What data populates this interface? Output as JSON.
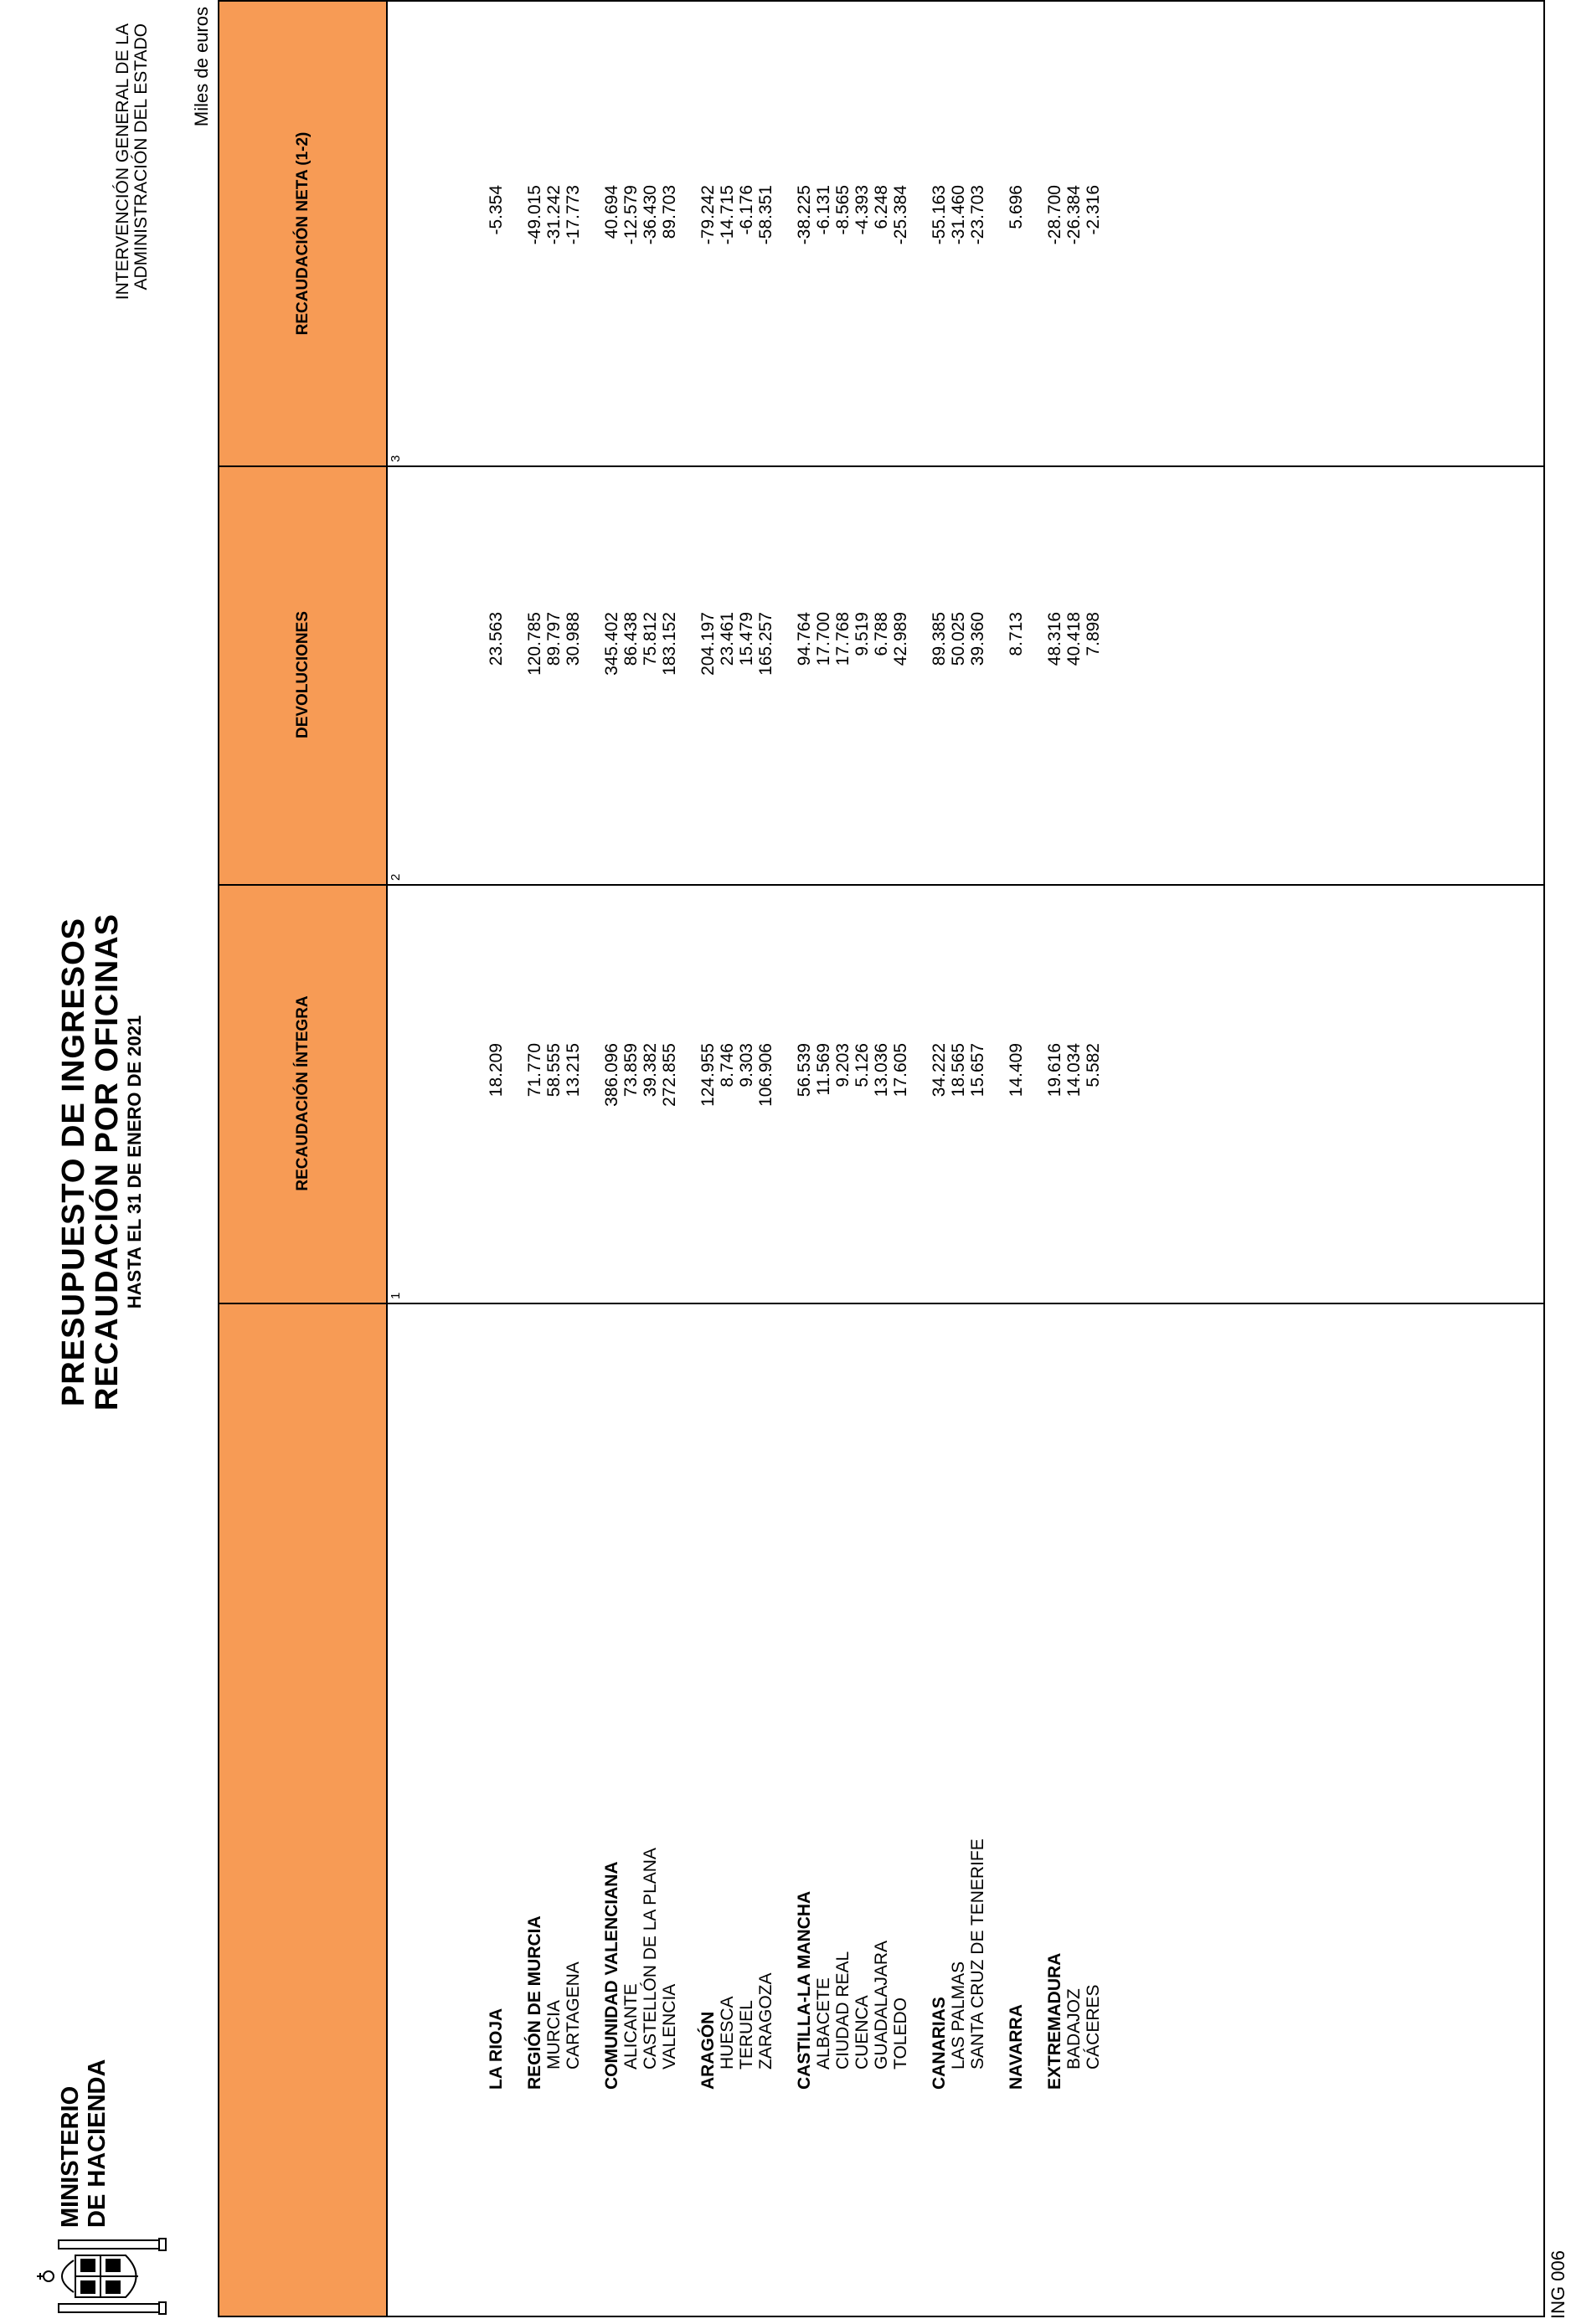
{
  "header": {
    "ministry_line1": "MINISTERIO",
    "ministry_line2": "DE HACIENDA",
    "title_line1": "PRESUPUESTO DE INGRESOS",
    "title_line2": "RECAUDACIÓN POR OFICINAS",
    "title_line3": "HASTA EL 31 DE ENERO DE 2021",
    "ige_line1": "INTERVENCIÓN GENERAL DE LA",
    "ige_line2": "ADMINISTRACIÓN DEL ESTADO",
    "units": "Miles de euros"
  },
  "footer": {
    "code": "ING 006"
  },
  "columns": [
    {
      "label": "RECAUDACIÓN ÍNTEGRA",
      "number": "1"
    },
    {
      "label": "DEVOLUCIONES",
      "number": "2"
    },
    {
      "label": "RECAUDACIÓN NETA (1-2)",
      "number": "3"
    }
  ],
  "rows": [
    {
      "name": "LA RIOJA",
      "type": "group",
      "integra": "18.209",
      "devoluciones": "23.563",
      "neta": "-5.354"
    },
    {
      "name": "REGIÓN DE MURCIA",
      "type": "group",
      "integra": "71.770",
      "devoluciones": "120.785",
      "neta": "-49.015"
    },
    {
      "name": "MURCIA",
      "type": "sub",
      "integra": "58.555",
      "devoluciones": "89.797",
      "neta": "-31.242"
    },
    {
      "name": "CARTAGENA",
      "type": "sub",
      "integra": "13.215",
      "devoluciones": "30.988",
      "neta": "-17.773"
    },
    {
      "name": "COMUNIDAD VALENCIANA",
      "type": "group",
      "integra": "386.096",
      "devoluciones": "345.402",
      "neta": "40.694"
    },
    {
      "name": "ALICANTE",
      "type": "sub",
      "integra": "73.859",
      "devoluciones": "86.438",
      "neta": "-12.579"
    },
    {
      "name": "CASTELLÓN DE LA PLANA",
      "type": "sub",
      "integra": "39.382",
      "devoluciones": "75.812",
      "neta": "-36.430"
    },
    {
      "name": "VALENCIA",
      "type": "sub",
      "integra": "272.855",
      "devoluciones": "183.152",
      "neta": "89.703"
    },
    {
      "name": "ARAGÓN",
      "type": "group",
      "integra": "124.955",
      "devoluciones": "204.197",
      "neta": "-79.242"
    },
    {
      "name": "HUESCA",
      "type": "sub",
      "integra": "8.746",
      "devoluciones": "23.461",
      "neta": "-14.715"
    },
    {
      "name": "TERUEL",
      "type": "sub",
      "integra": "9.303",
      "devoluciones": "15.479",
      "neta": "-6.176"
    },
    {
      "name": "ZARAGOZA",
      "type": "sub",
      "integra": "106.906",
      "devoluciones": "165.257",
      "neta": "-58.351"
    },
    {
      "name": "CASTILLA-LA MANCHA",
      "type": "group",
      "integra": "56.539",
      "devoluciones": "94.764",
      "neta": "-38.225"
    },
    {
      "name": "ALBACETE",
      "type": "sub",
      "integra": "11.569",
      "devoluciones": "17.700",
      "neta": "-6.131"
    },
    {
      "name": "CIUDAD REAL",
      "type": "sub",
      "integra": "9.203",
      "devoluciones": "17.768",
      "neta": "-8.565"
    },
    {
      "name": "CUENCA",
      "type": "sub",
      "integra": "5.126",
      "devoluciones": "9.519",
      "neta": "-4.393"
    },
    {
      "name": "GUADALAJARA",
      "type": "sub",
      "integra": "13.036",
      "devoluciones": "6.788",
      "neta": "6.248"
    },
    {
      "name": "TOLEDO",
      "type": "sub",
      "integra": "17.605",
      "devoluciones": "42.989",
      "neta": "-25.384"
    },
    {
      "name": "CANARIAS",
      "type": "group",
      "integra": "34.222",
      "devoluciones": "89.385",
      "neta": "-55.163"
    },
    {
      "name": "LAS PALMAS",
      "type": "sub",
      "integra": "18.565",
      "devoluciones": "50.025",
      "neta": "-31.460"
    },
    {
      "name": "SANTA CRUZ DE TENERIFE",
      "type": "sub",
      "integra": "15.657",
      "devoluciones": "39.360",
      "neta": "-23.703"
    },
    {
      "name": "NAVARRA",
      "type": "group",
      "integra": "14.409",
      "devoluciones": "8.713",
      "neta": "5.696"
    },
    {
      "name": "EXTREMADURA",
      "type": "group",
      "integra": "19.616",
      "devoluciones": "48.316",
      "neta": "-28.700"
    },
    {
      "name": "BADAJOZ",
      "type": "sub",
      "integra": "14.034",
      "devoluciones": "40.418",
      "neta": "-26.384"
    },
    {
      "name": "CÁCERES",
      "type": "sub",
      "integra": "5.582",
      "devoluciones": "7.898",
      "neta": "-2.316"
    }
  ]
}
